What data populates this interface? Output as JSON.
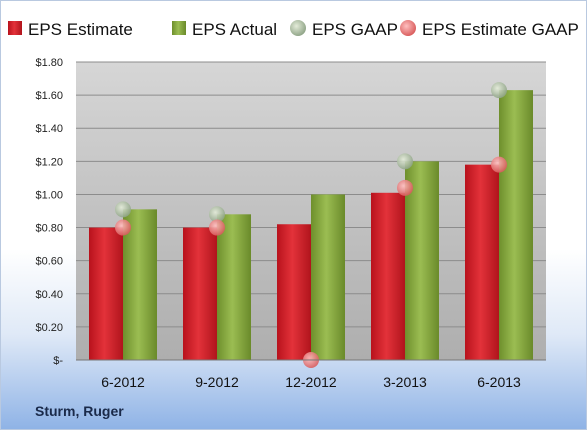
{
  "footer": {
    "company": "Sturm, Ruger"
  },
  "colors": {
    "eps_estimate": "#d0202a",
    "eps_actual": "#86a93d",
    "eps_gaap_marker": "#a9bfa0",
    "eps_estimate_gaap_marker": "#e97b7b",
    "plot_background": "#c2c2c2"
  },
  "chart_data": {
    "type": "bar",
    "categories": [
      "6-2012",
      "9-2012",
      "12-2012",
      "3-2013",
      "6-2013"
    ],
    "series": [
      {
        "name": "EPS Estimate",
        "kind": "bar",
        "values": [
          0.8,
          0.8,
          0.82,
          1.01,
          1.18
        ]
      },
      {
        "name": "EPS Actual",
        "kind": "bar",
        "values": [
          0.91,
          0.88,
          1.0,
          1.2,
          1.63
        ]
      },
      {
        "name": "EPS GAAP",
        "kind": "marker",
        "values": [
          0.91,
          0.88,
          null,
          1.2,
          1.63
        ]
      },
      {
        "name": "EPS Estimate GAAP",
        "kind": "marker",
        "values": [
          0.8,
          0.8,
          0.0,
          1.04,
          1.18
        ]
      }
    ],
    "y_ticks": [
      {
        "value": 0.0,
        "label": "$-"
      },
      {
        "value": 0.2,
        "label": "$0.20"
      },
      {
        "value": 0.4,
        "label": "$0.40"
      },
      {
        "value": 0.6,
        "label": "$0.60"
      },
      {
        "value": 0.8,
        "label": "$0.80"
      },
      {
        "value": 1.0,
        "label": "$1.00"
      },
      {
        "value": 1.2,
        "label": "$1.20"
      },
      {
        "value": 1.4,
        "label": "$1.40"
      },
      {
        "value": 1.6,
        "label": "$1.60"
      },
      {
        "value": 1.8,
        "label": "$1.80"
      }
    ],
    "ylim": [
      0,
      1.8
    ],
    "grid": true,
    "legend_position": "top"
  }
}
